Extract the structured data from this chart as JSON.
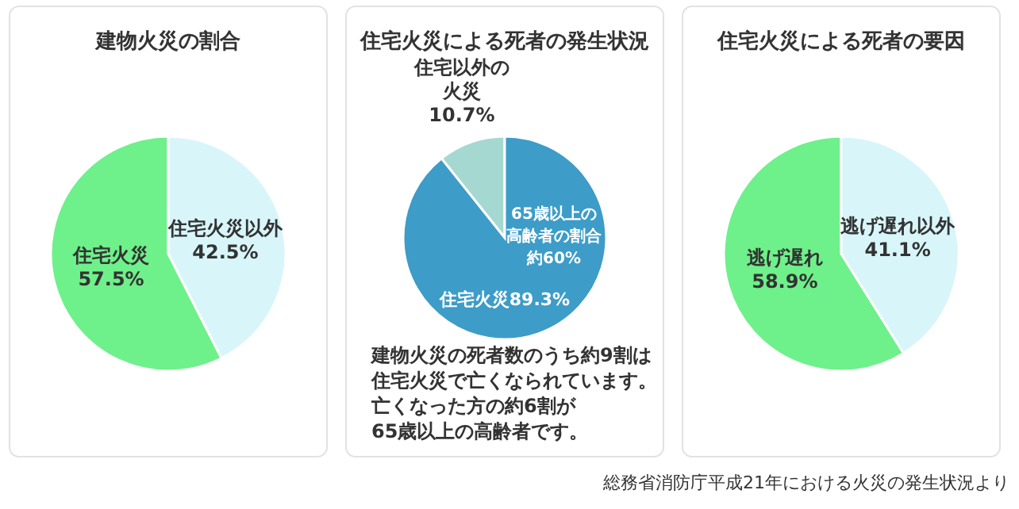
{
  "chart_data": [
    {
      "type": "pie",
      "title": "建物火災の割合",
      "categories": [
        "住宅火災",
        "住宅火災以外"
      ],
      "values": [
        57.5,
        42.5
      ],
      "value_labels": [
        "57.5%",
        "42.5%"
      ],
      "data_labels": true,
      "colors": [
        "#6ef08a",
        "#d8f6fa"
      ]
    },
    {
      "type": "pie",
      "title": "住宅火災による死者の発生状況",
      "categories": [
        "住宅以外の火災",
        "住宅火災"
      ],
      "values": [
        10.7,
        89.3
      ],
      "value_labels": [
        "10.7%",
        "89.3%"
      ],
      "data_labels": true,
      "colors": [
        "#a6d8d2",
        "#3d9cc8"
      ],
      "annotations": [
        "65歳以上の",
        "高齢者の割合",
        "約60%",
        "建物火災の死者数のうち約9割は",
        "住宅火災で亡くなられています。",
        "亡くなった方の約6割が",
        "65歳以上の高齢者です。"
      ]
    },
    {
      "type": "pie",
      "title": "住宅火災による死者の要因",
      "categories": [
        "逃げ遅れ",
        "逃げ遅れ以外"
      ],
      "values": [
        58.9,
        41.1
      ],
      "value_labels": [
        "58.9%",
        "41.1%"
      ],
      "data_labels": true,
      "colors": [
        "#6ef08a",
        "#d8f6fa"
      ],
      "annotations": [
        "総務省消防庁平成21年における火災の発生状況より"
      ]
    }
  ]
}
